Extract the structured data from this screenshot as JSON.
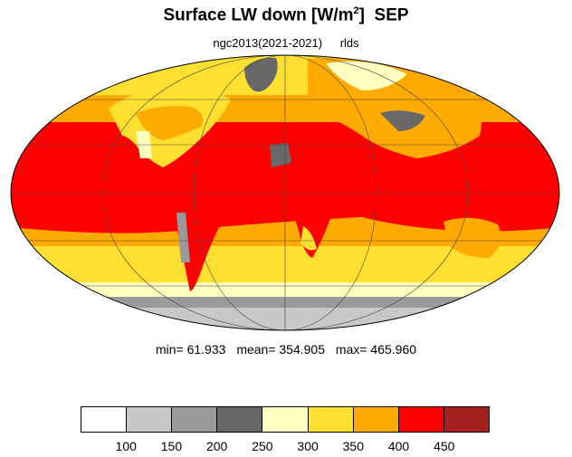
{
  "title": {
    "main": "Surface LW down [W/m",
    "sup": "2",
    "close": "]",
    "month": "SEP"
  },
  "subtitle": {
    "run": "ngc2013(2021-2021)",
    "variable": "rlds"
  },
  "stats": {
    "min": "min=  61.933",
    "mean": "mean= 354.905",
    "max": "max= 465.960"
  },
  "colorbar": {
    "colors": [
      "#ffffff",
      "#c8c8c8",
      "#9a9a9a",
      "#686868",
      "#ffffc0",
      "#ffe030",
      "#ffaa00",
      "#ff0000",
      "#a52020"
    ],
    "ticks": [
      "100",
      "150",
      "200",
      "250",
      "300",
      "350",
      "400",
      "450"
    ]
  },
  "map": {
    "projection": "mollweide",
    "gridlines": true,
    "ocean_bands_note": ""
  }
}
